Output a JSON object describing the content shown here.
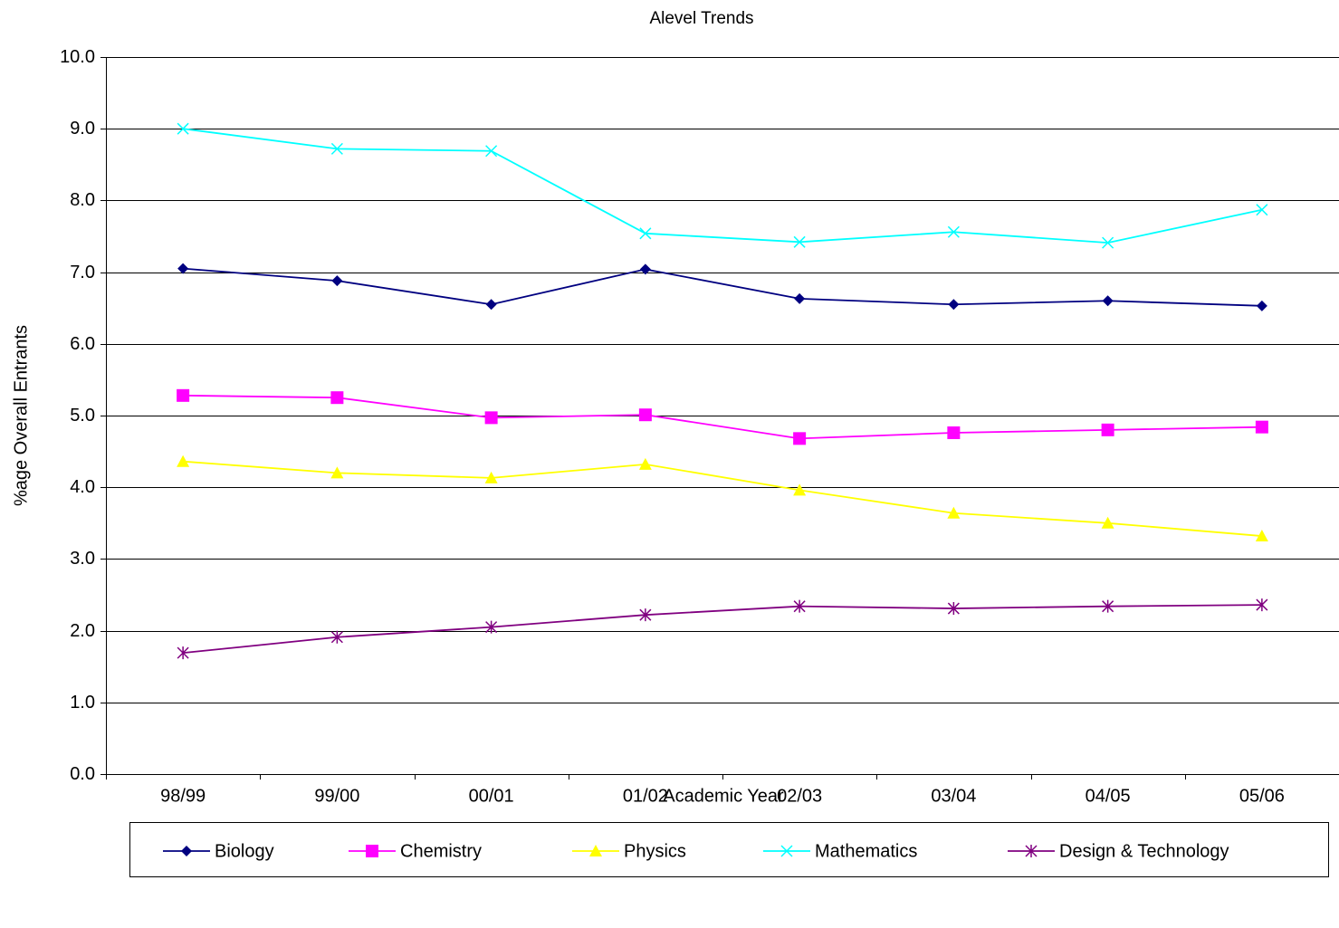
{
  "chart_data": {
    "type": "line",
    "title": "Alevel Trends",
    "x_label": "Academic Year",
    "y_label": "%age Overall Entrants",
    "categories": [
      "98/99",
      "99/00",
      "00/01",
      "01/02",
      "02/03",
      "03/04",
      "04/05",
      "05/06"
    ],
    "series": [
      {
        "name": "Biology",
        "color": "#000080",
        "marker": "diamond",
        "values": [
          7.05,
          6.88,
          6.55,
          7.04,
          6.63,
          6.55,
          6.6,
          6.53
        ]
      },
      {
        "name": "Chemistry",
        "color": "#ff00ff",
        "marker": "square",
        "values": [
          5.28,
          5.25,
          4.97,
          5.01,
          4.68,
          4.76,
          4.8,
          4.84
        ]
      },
      {
        "name": "Physics",
        "color": "#ffff00",
        "marker": "triangle",
        "values": [
          4.36,
          4.2,
          4.13,
          4.32,
          3.96,
          3.64,
          3.5,
          3.32
        ]
      },
      {
        "name": "Mathematics",
        "color": "#00ffff",
        "marker": "x",
        "values": [
          9.0,
          8.72,
          8.69,
          7.54,
          7.42,
          7.56,
          7.41,
          7.87
        ]
      },
      {
        "name": "Design & Technology",
        "color": "#800080",
        "marker": "star",
        "values": [
          1.69,
          1.91,
          2.05,
          2.22,
          2.34,
          2.31,
          2.34,
          2.36
        ]
      }
    ],
    "ylim": [
      0,
      10
    ],
    "yticks": [
      {
        "value": 0,
        "label": "0.0"
      },
      {
        "value": 1,
        "label": "1.0"
      },
      {
        "value": 2,
        "label": "2.0"
      },
      {
        "value": 3,
        "label": "3.0"
      },
      {
        "value": 4,
        "label": "4.0"
      },
      {
        "value": 5,
        "label": "5.0"
      },
      {
        "value": 6,
        "label": "6.0"
      },
      {
        "value": 7,
        "label": "7.0"
      },
      {
        "value": 8,
        "label": "8.0"
      },
      {
        "value": 9,
        "label": "9.0"
      },
      {
        "value": 10,
        "label": "10.0"
      }
    ],
    "grid": true,
    "legend": "bottom"
  }
}
